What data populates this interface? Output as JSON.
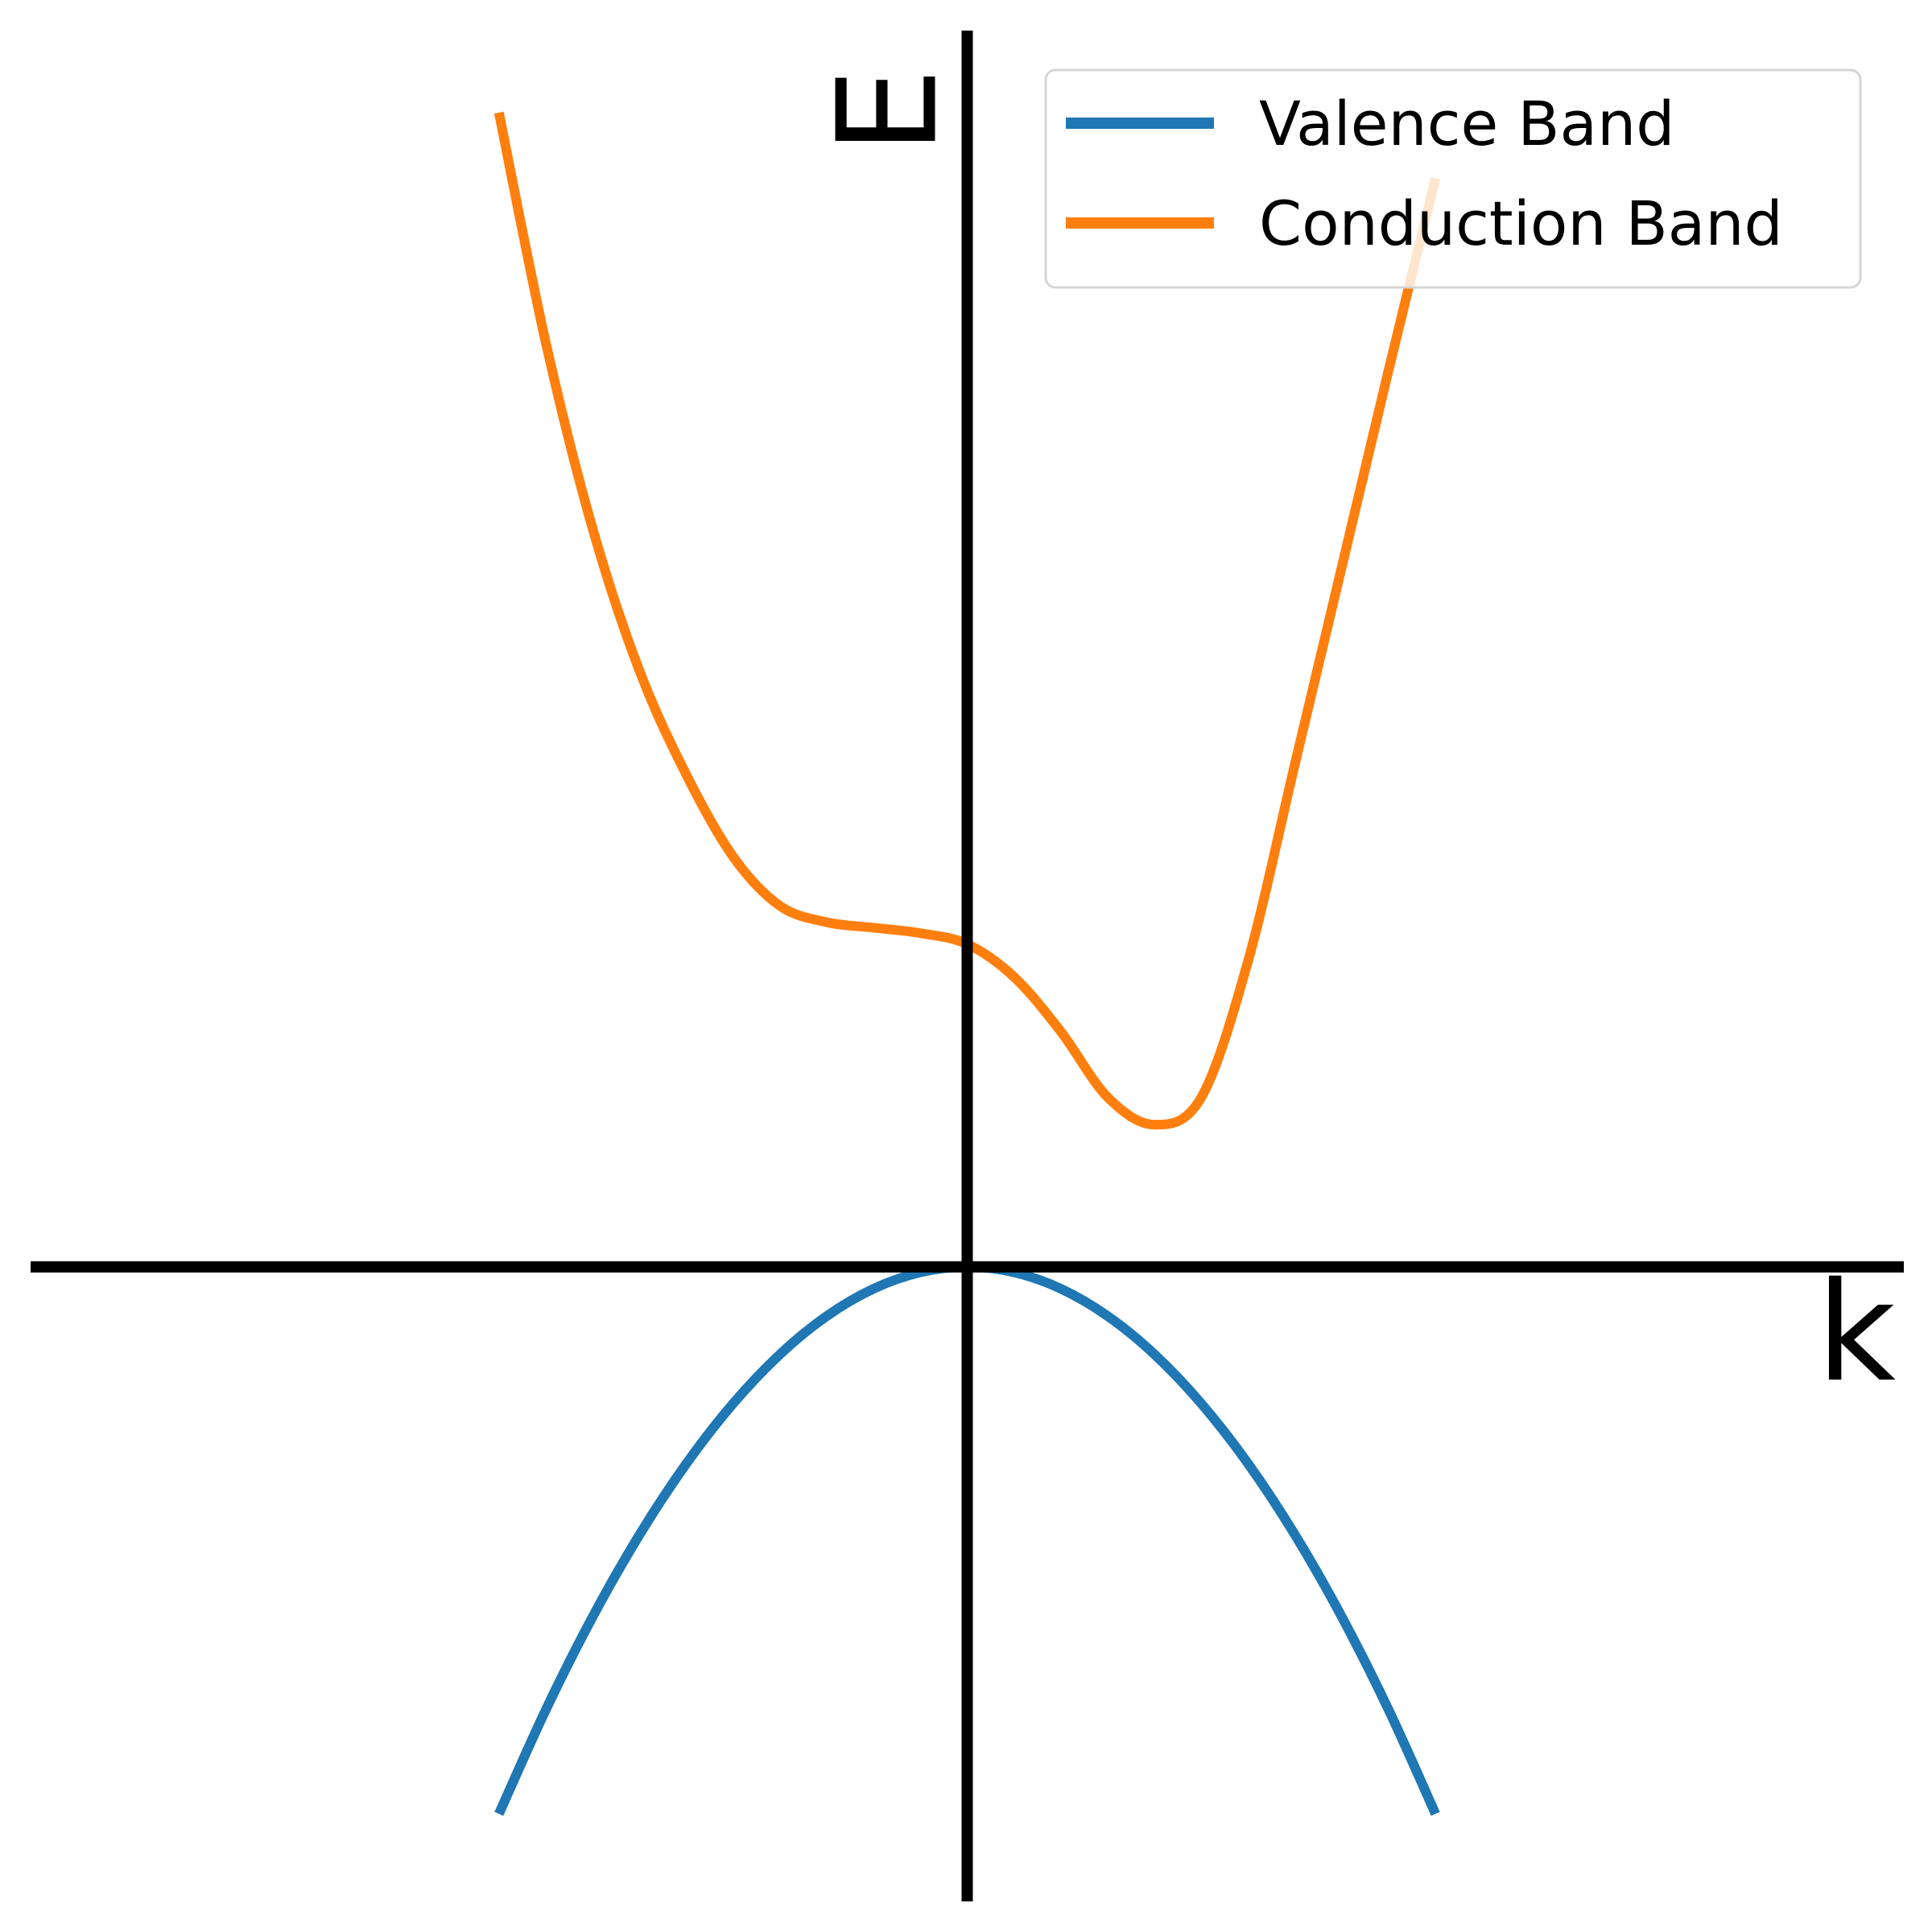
{
  "chart_data": {
    "type": "line",
    "xlabel": "k",
    "ylabel": "E",
    "x": [
      -1.0,
      -0.9,
      -0.8,
      -0.7,
      -0.6,
      -0.5,
      -0.4,
      -0.3,
      -0.2,
      -0.1,
      0.0,
      0.1,
      0.2,
      0.3,
      0.4,
      0.5,
      0.6,
      0.7,
      0.8,
      0.9,
      1.0
    ],
    "series": [
      {
        "name": "Valence Band",
        "color": "#1f77b4",
        "values": [
          -1.0,
          -0.81,
          -0.64,
          -0.49,
          -0.36,
          -0.25,
          -0.16,
          -0.09,
          -0.04,
          -0.01,
          0.0,
          -0.01,
          -0.04,
          -0.09,
          -0.16,
          -0.25,
          -0.36,
          -0.49,
          -0.64,
          -0.81,
          -1.0
        ]
      },
      {
        "name": "Conduction Band",
        "color": "#ff7f0e",
        "values": [
          2.11,
          1.69,
          1.35,
          1.09,
          0.9,
          0.75,
          0.66,
          0.63,
          0.62,
          0.61,
          0.59,
          0.53,
          0.43,
          0.31,
          0.26,
          0.31,
          0.56,
          0.92,
          1.28,
          1.64,
          1.99
        ]
      }
    ],
    "xlim": [
      -2,
      2
    ],
    "ylim": [
      -1.16,
      2.26
    ],
    "legend": "upper right"
  }
}
